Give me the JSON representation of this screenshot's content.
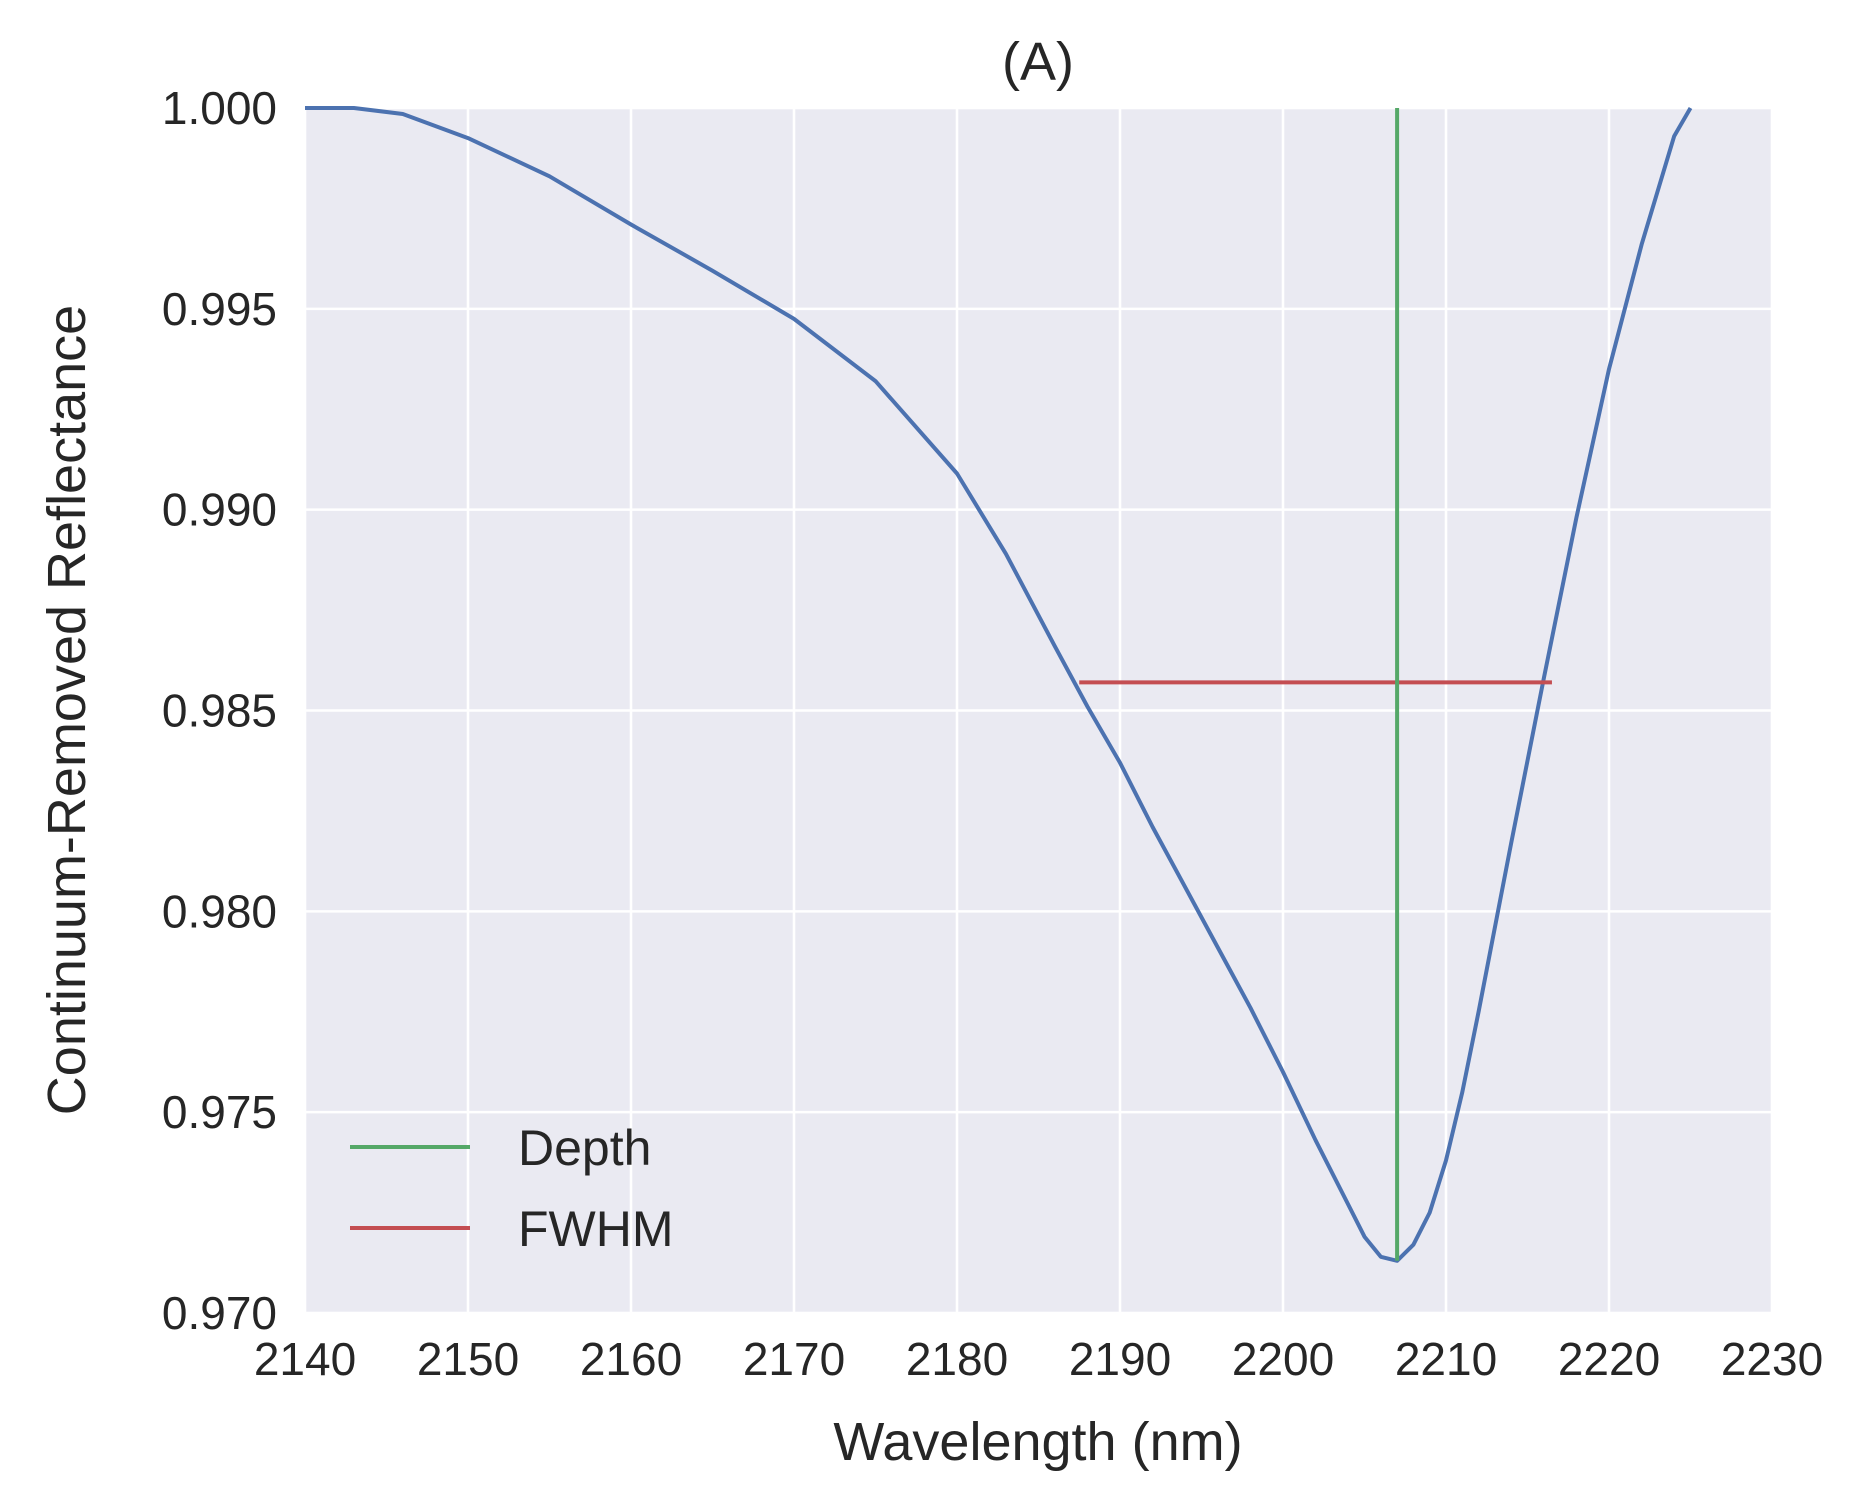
{
  "chart_data": {
    "type": "line",
    "title": "(A)",
    "xlabel": "Wavelength (nm)",
    "ylabel": "Continuum-Removed Reflectance",
    "xlim": [
      2140,
      2230
    ],
    "ylim": [
      0.97,
      1.0
    ],
    "xticks": [
      "2140",
      "2150",
      "2160",
      "2170",
      "2180",
      "2190",
      "2200",
      "2210",
      "2220",
      "2230"
    ],
    "yticks": [
      "1.000",
      "0.995",
      "0.990",
      "0.985",
      "0.980",
      "0.975",
      "0.970"
    ],
    "grid": true,
    "legend_position": "lower-left",
    "background_color": "#EAEAF2",
    "series": [
      {
        "color": "#4C72B0",
        "x": [
          2140,
          2143,
          2146,
          2150,
          2155,
          2160,
          2165,
          2170,
          2175,
          2180,
          2183,
          2186,
          2188,
          2190,
          2192,
          2194,
          2196,
          2198,
          2200,
          2202,
          2204,
          2205,
          2206,
          2207,
          2208,
          2209,
          2210,
          2211,
          2212,
          2214,
          2216,
          2218,
          2220,
          2222,
          2224,
          2225
        ],
        "y": [
          1.0,
          1.0,
          0.99985,
          0.99925,
          0.9983,
          0.9971,
          0.99595,
          0.99475,
          0.9932,
          0.9909,
          0.9889,
          0.9866,
          0.9851,
          0.9837,
          0.9821,
          0.9806,
          0.9791,
          0.9776,
          0.976,
          0.9743,
          0.9727,
          0.9719,
          0.9714,
          0.9713,
          0.9717,
          0.9725,
          0.9738,
          0.9755,
          0.9775,
          0.9817,
          0.9858,
          0.9898,
          0.9935,
          0.9966,
          0.9993,
          1.0
        ]
      }
    ],
    "depth": {
      "name": "Depth",
      "color": "#55A868",
      "x": 2207,
      "y": [
        0.9713,
        1.0
      ]
    },
    "fwhm": {
      "name": "FWHM",
      "color": "#C44E52",
      "x": [
        2187.5,
        2216.5
      ],
      "y": 0.9857
    }
  }
}
